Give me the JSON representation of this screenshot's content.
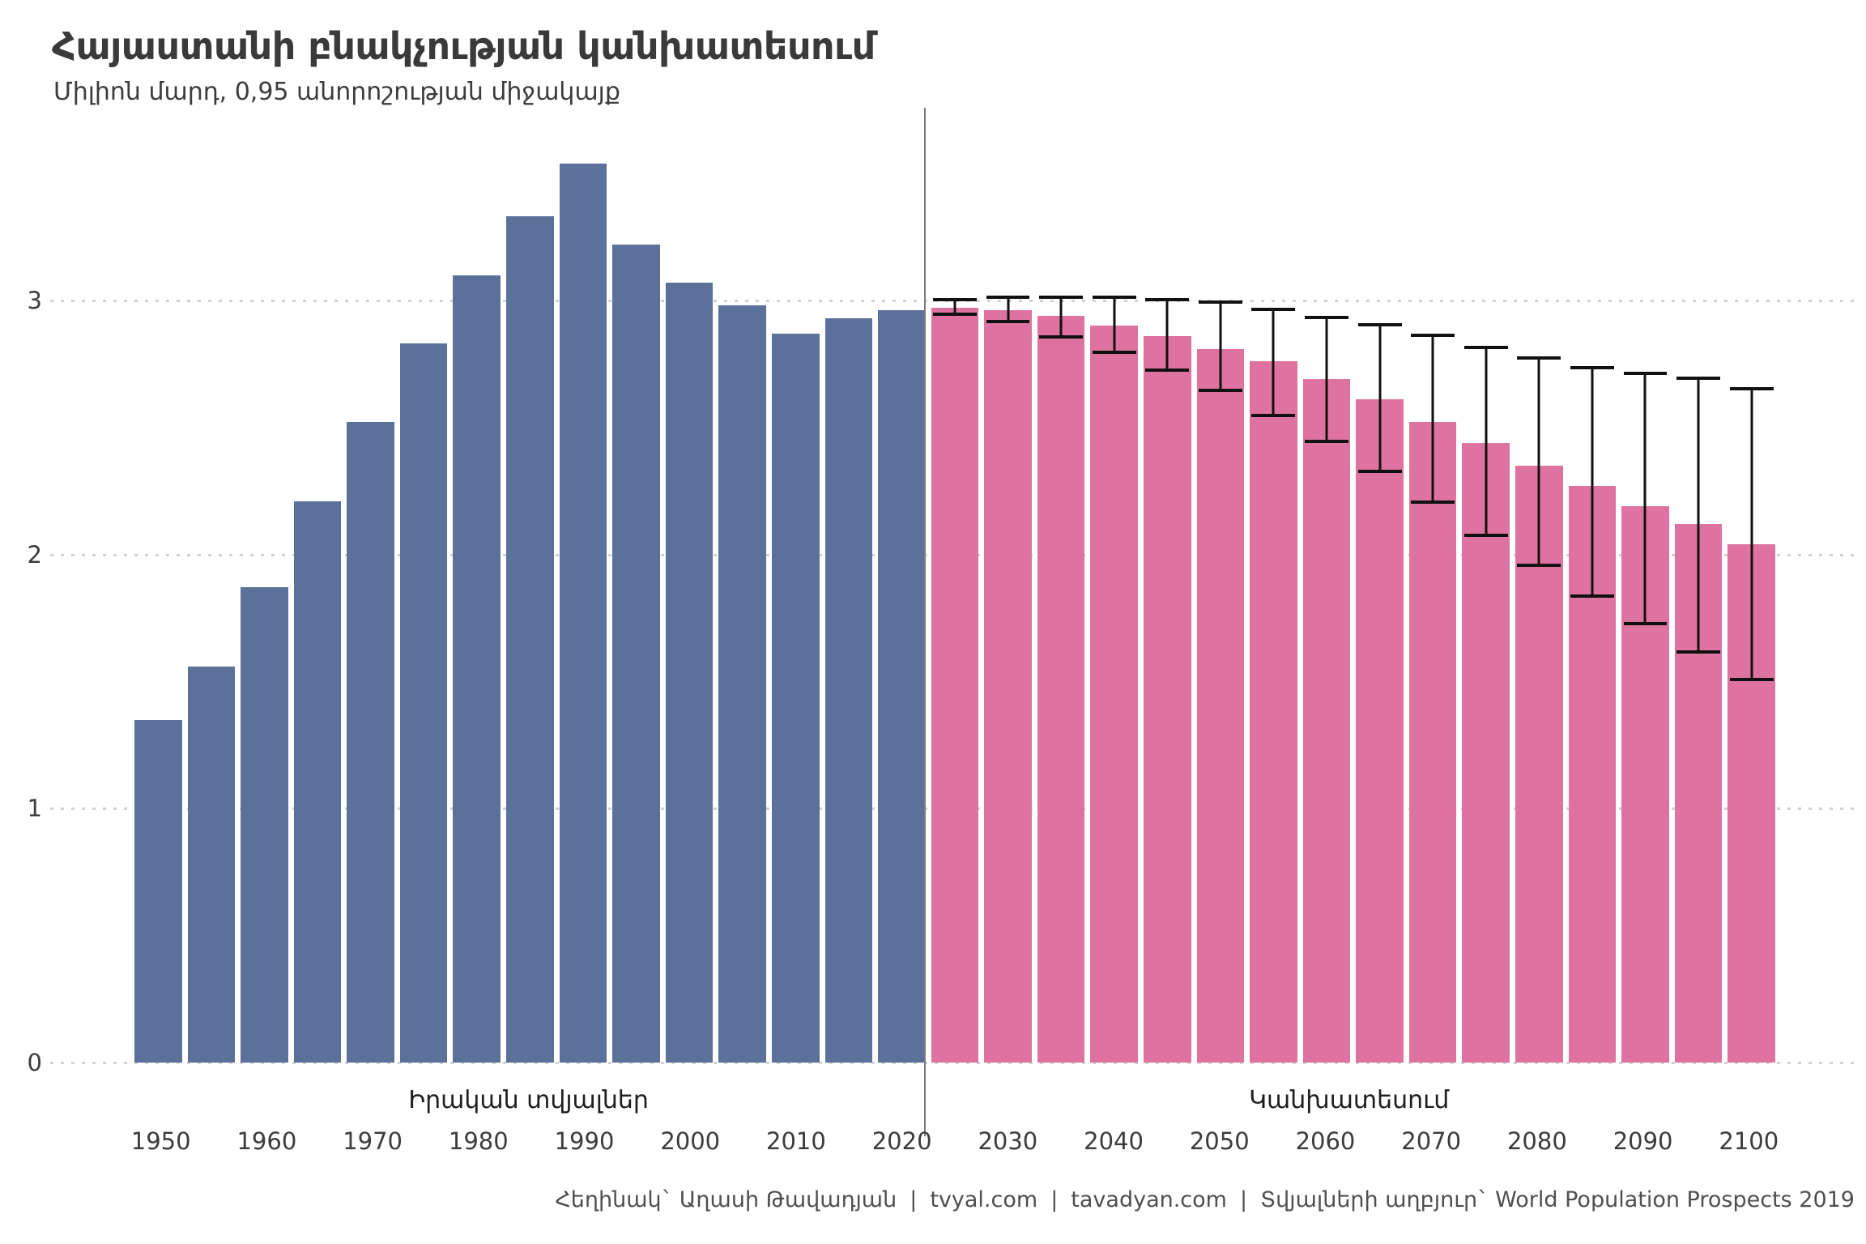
{
  "title": "Հայաստանի բնակչության կանխատեսում",
  "subtitle": "Միլիոն մարդ, 0,95 անորոշության միջակայք",
  "annotations": {
    "historical_label": "Իրական տվյալներ",
    "forecast_label": "Կանխատեսում"
  },
  "footer": {
    "author": "Հեղինակ` Աղասի Թավադյան",
    "separator": "|",
    "site1": "tvyal.com",
    "site2": "tavadyan.com",
    "source": "Տվյալների աղբյուր` World Population Prospects 2019"
  },
  "colors": {
    "historical": "#5B7199",
    "forecast": "#DE73A1",
    "whisker": "#111111",
    "divider": "#7C7C7C",
    "grid_dot": "#D2D2D2"
  },
  "y_axis": {
    "tick_labels": [
      "0",
      "1",
      "2",
      "3"
    ],
    "tick_values": [
      0,
      1,
      2,
      3
    ]
  },
  "chart_data": {
    "type": "bar",
    "title": "Հայաստանի բնակչության կանխատեսում",
    "subtitle": "Միլիոն մարդ, 0,95 անորոշության միջակայք",
    "unit": "millions of people",
    "interval": "0.95 uncertainty interval",
    "ylim": [
      0,
      3.74
    ],
    "grid": "dotted horizontal lines at 0,1,2,3",
    "legend_position": "below-axis region labels",
    "x_tick_labels": [
      "1950",
      "1960",
      "1970",
      "1980",
      "1990",
      "2000",
      "2010",
      "2020",
      "2030",
      "2040",
      "2050",
      "2060",
      "2070",
      "2080",
      "2090",
      "2100"
    ],
    "bars": [
      {
        "year": 1950,
        "type": "historical",
        "value": 1.35
      },
      {
        "year": 1955,
        "type": "historical",
        "value": 1.56
      },
      {
        "year": 1960,
        "type": "historical",
        "value": 1.87
      },
      {
        "year": 1965,
        "type": "historical",
        "value": 2.21
      },
      {
        "year": 1970,
        "type": "historical",
        "value": 2.52
      },
      {
        "year": 1975,
        "type": "historical",
        "value": 2.83
      },
      {
        "year": 1980,
        "type": "historical",
        "value": 3.1
      },
      {
        "year": 1985,
        "type": "historical",
        "value": 3.33
      },
      {
        "year": 1990,
        "type": "historical",
        "value": 3.54
      },
      {
        "year": 1995,
        "type": "historical",
        "value": 3.22
      },
      {
        "year": 2000,
        "type": "historical",
        "value": 3.07
      },
      {
        "year": 2005,
        "type": "historical",
        "value": 2.98
      },
      {
        "year": 2010,
        "type": "historical",
        "value": 2.87
      },
      {
        "year": 2015,
        "type": "historical",
        "value": 2.93
      },
      {
        "year": 2020,
        "type": "historical",
        "value": 2.96
      },
      {
        "year": 2025,
        "type": "forecast",
        "value": 2.97,
        "lo": 2.94,
        "hi": 3.01
      },
      {
        "year": 2030,
        "type": "forecast",
        "value": 2.96,
        "lo": 2.91,
        "hi": 3.02
      },
      {
        "year": 2035,
        "type": "forecast",
        "value": 2.94,
        "lo": 2.85,
        "hi": 3.02
      },
      {
        "year": 2040,
        "type": "forecast",
        "value": 2.9,
        "lo": 2.79,
        "hi": 3.02
      },
      {
        "year": 2045,
        "type": "forecast",
        "value": 2.86,
        "lo": 2.72,
        "hi": 3.01
      },
      {
        "year": 2050,
        "type": "forecast",
        "value": 2.81,
        "lo": 2.64,
        "hi": 3.0
      },
      {
        "year": 2055,
        "type": "forecast",
        "value": 2.76,
        "lo": 2.54,
        "hi": 2.97
      },
      {
        "year": 2060,
        "type": "forecast",
        "value": 2.69,
        "lo": 2.44,
        "hi": 2.94
      },
      {
        "year": 2065,
        "type": "forecast",
        "value": 2.61,
        "lo": 2.32,
        "hi": 2.91
      },
      {
        "year": 2070,
        "type": "forecast",
        "value": 2.52,
        "lo": 2.2,
        "hi": 2.87
      },
      {
        "year": 2075,
        "type": "forecast",
        "value": 2.44,
        "lo": 2.07,
        "hi": 2.82
      },
      {
        "year": 2080,
        "type": "forecast",
        "value": 2.35,
        "lo": 1.95,
        "hi": 2.78
      },
      {
        "year": 2085,
        "type": "forecast",
        "value": 2.27,
        "lo": 1.83,
        "hi": 2.74
      },
      {
        "year": 2090,
        "type": "forecast",
        "value": 2.19,
        "lo": 1.72,
        "hi": 2.72
      },
      {
        "year": 2095,
        "type": "forecast",
        "value": 2.12,
        "lo": 1.61,
        "hi": 2.7
      },
      {
        "year": 2100,
        "type": "forecast",
        "value": 2.04,
        "lo": 1.5,
        "hi": 2.66
      }
    ]
  }
}
